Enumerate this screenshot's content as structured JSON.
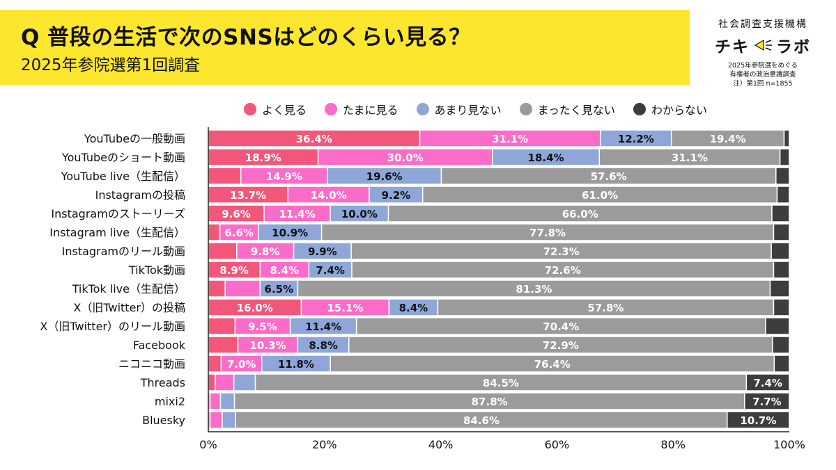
{
  "header": {
    "title": "Q 普段の生活で次のSNSはどのくらい見る？",
    "subtitle": "2025年参院選第1回調査"
  },
  "logo": {
    "org": "社会調査支援機構",
    "name_left": "チキ",
    "name_right": "ラボ",
    "note_line1": "2025年参院選をめぐる",
    "note_line2": "有権者の政治意識調査",
    "note_line3": "注）第1回 n=1855"
  },
  "colors": {
    "often": "#f2577a",
    "sometimes": "#fb6cc8",
    "rarely": "#8ea6d8",
    "never": "#9b9b9b",
    "unknown": "#3d3d3d",
    "header_band": "#fde62e"
  },
  "legend": [
    {
      "label": "よく見る",
      "color": "#f2577a"
    },
    {
      "label": "たまに見る",
      "color": "#fb6cc8"
    },
    {
      "label": "あまり見ない",
      "color": "#8ea6d8"
    },
    {
      "label": "まったく見ない",
      "color": "#9b9b9b"
    },
    {
      "label": "わからない",
      "color": "#3d3d3d"
    }
  ],
  "chart_data": {
    "type": "bar",
    "orientation": "horizontal",
    "stacked": true,
    "xlim": [
      0,
      100
    ],
    "x_ticks": [
      "0%",
      "20%",
      "40%",
      "60%",
      "80%",
      "100%"
    ],
    "x_tick_values": [
      0,
      20,
      40,
      60,
      80,
      100
    ],
    "categories": [
      "YouTubeの一般動画",
      "YouTubeのショート動画",
      "YouTube live（生配信）",
      "Instagramの投稿",
      "Instagramのストーリーズ",
      "Instagram live（生配信）",
      "Instagramのリール動画",
      "TikTok動画",
      "TikTok live（生配信）",
      "X（旧Twitter）の投稿",
      "X（旧Twitter）のリール動画",
      "Facebook",
      "ニコニコ動画",
      "Threads",
      "mixi2",
      "Bluesky"
    ],
    "series": [
      {
        "name": "よく見る",
        "color": "#f2577a",
        "values": [
          36.4,
          18.9,
          5.6,
          13.7,
          9.6,
          2.0,
          4.9,
          8.9,
          2.9,
          16.0,
          4.6,
          5.1,
          2.2,
          1.2,
          0.3,
          0.3
        ],
        "labels": [
          "36.4%",
          "18.9%",
          "",
          "13.7%",
          "9.6%",
          "",
          "",
          "8.9%",
          "",
          "16.0%",
          "",
          "",
          "",
          "",
          "",
          ""
        ]
      },
      {
        "name": "たまに見る",
        "color": "#fb6cc8",
        "values": [
          31.1,
          30.0,
          14.9,
          14.0,
          11.4,
          6.6,
          9.8,
          8.4,
          6.0,
          15.1,
          9.5,
          10.3,
          7.0,
          3.2,
          1.8,
          2.1
        ],
        "labels": [
          "31.1%",
          "30.0%",
          "14.9%",
          "14.0%",
          "11.4%",
          "6.6%",
          "9.8%",
          "8.4%",
          "",
          "15.1%",
          "9.5%",
          "10.3%",
          "7.0%",
          "",
          "",
          ""
        ]
      },
      {
        "name": "あまり見ない",
        "color": "#8ea6d8",
        "values": [
          12.2,
          18.4,
          19.6,
          9.2,
          10.0,
          10.9,
          9.9,
          7.4,
          6.5,
          8.4,
          11.4,
          8.8,
          11.8,
          3.7,
          2.4,
          2.3
        ],
        "labels": [
          "12.2%",
          "18.4%",
          "19.6%",
          "9.2%",
          "10.0%",
          "10.9%",
          "9.9%",
          "7.4%",
          "6.5%",
          "8.4%",
          "11.4%",
          "8.8%",
          "11.8%",
          "",
          "",
          ""
        ]
      },
      {
        "name": "まったく見ない",
        "color": "#9b9b9b",
        "values": [
          19.4,
          31.1,
          57.6,
          61.0,
          66.0,
          77.8,
          72.3,
          72.6,
          81.3,
          57.8,
          70.4,
          72.9,
          76.4,
          84.5,
          87.8,
          84.6
        ],
        "labels": [
          "19.4%",
          "31.1%",
          "57.6%",
          "61.0%",
          "66.0%",
          "77.8%",
          "72.3%",
          "72.6%",
          "81.3%",
          "57.8%",
          "70.4%",
          "72.9%",
          "76.4%",
          "84.5%",
          "87.8%",
          "84.6%"
        ]
      },
      {
        "name": "わからない",
        "color": "#3d3d3d",
        "values": [
          0.9,
          1.6,
          2.3,
          2.1,
          3.0,
          2.7,
          3.1,
          2.7,
          3.3,
          2.7,
          4.1,
          2.9,
          2.6,
          7.4,
          7.7,
          10.7
        ],
        "labels": [
          "",
          "",
          "",
          "",
          "",
          "",
          "",
          "",
          "",
          "",
          "",
          "",
          "",
          "7.4%",
          "7.7%",
          "10.7%"
        ]
      }
    ]
  }
}
